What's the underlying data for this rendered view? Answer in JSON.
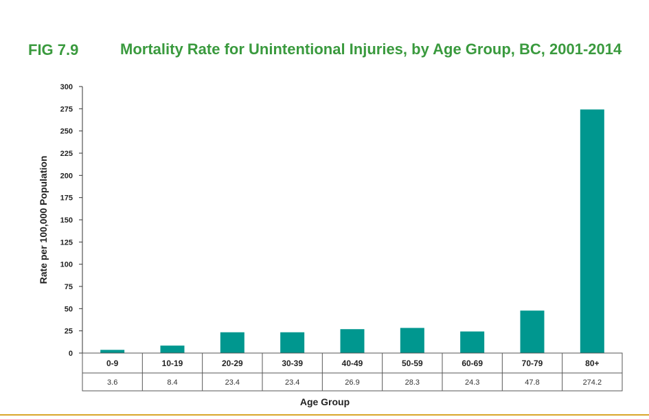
{
  "figure": {
    "label": "FIG 7.9",
    "title": "Mortality Rate for Unintentional Injuries, by Age Group, BC, 2001-2014"
  },
  "colors": {
    "title": "#3a9a3e",
    "bar": "#00978f",
    "rule": "#d9a62a",
    "axis": "#333333"
  },
  "chart_data": {
    "type": "bar",
    "categories": [
      "0-9",
      "10-19",
      "20-29",
      "30-39",
      "40-49",
      "50-59",
      "60-69",
      "70-79",
      "80+"
    ],
    "values": [
      3.6,
      8.4,
      23.4,
      23.4,
      26.9,
      28.3,
      24.3,
      47.8,
      274.2
    ],
    "value_labels": [
      "3.6",
      "8.4",
      "23.4",
      "23.4",
      "26.9",
      "28.3",
      "24.3",
      "47.8",
      "274.2"
    ],
    "title": "Mortality Rate for Unintentional Injuries, by Age Group, BC, 2001-2014",
    "xlabel": "Age Group",
    "ylabel": "Rate per 100,000 Population",
    "ylim": [
      0,
      300
    ],
    "yticks": [
      0,
      25,
      50,
      75,
      100,
      125,
      150,
      175,
      200,
      225,
      250,
      275,
      300
    ],
    "grid": false,
    "legend": "none",
    "data_table": true
  }
}
